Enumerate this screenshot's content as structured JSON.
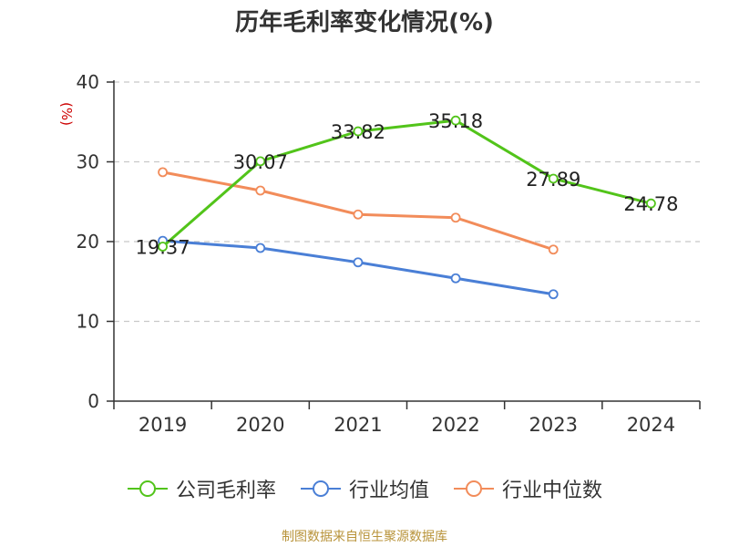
{
  "colors": {
    "company": "#52c41a",
    "industry_avg": "#4a7fd6",
    "industry_median": "#f28c5a",
    "axis": "#333333",
    "grid": "#c8c8c8",
    "ylabel": "#cc0000",
    "source": "#b8933a"
  },
  "source_note": "制图数据来自恒生聚源数据库",
  "chart_data": {
    "type": "line",
    "title": "历年毛利率变化情况(%)",
    "xlabel": "",
    "ylabel": "(%)",
    "categories": [
      "2019",
      "2020",
      "2021",
      "2022",
      "2023",
      "2024"
    ],
    "ylim": [
      0,
      40
    ],
    "yticks": [
      0,
      10,
      20,
      30,
      40
    ],
    "grid": true,
    "legend_position": "bottom",
    "series": [
      {
        "name": "公司毛利率",
        "color": "#52c41a",
        "values": [
          19.37,
          30.07,
          33.82,
          35.18,
          27.89,
          24.78
        ],
        "labels": [
          "19.37",
          "30.07",
          "33.82",
          "35.18",
          "27.89",
          "24.78"
        ]
      },
      {
        "name": "行业均值",
        "color": "#4a7fd6",
        "values": [
          20.1,
          19.2,
          17.4,
          15.4,
          13.4,
          null
        ]
      },
      {
        "name": "行业中位数",
        "color": "#f28c5a",
        "values": [
          28.7,
          26.4,
          23.4,
          23.0,
          19.0,
          null
        ]
      }
    ]
  }
}
